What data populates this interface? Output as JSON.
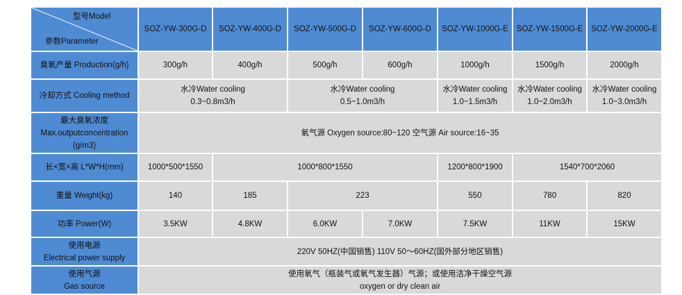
{
  "header": {
    "model_label": "型号Model",
    "param_label": "参数Parameter",
    "models": [
      "SOZ-YW-300G-D",
      "SOZ-YW-400G-D",
      "SOZ-YW-500G-D",
      "SOZ-YW-600G-D",
      "SOZ-YW-1000G-E",
      "SOZ-YW-1500G-E",
      "SOZ-YW-2000G-E"
    ]
  },
  "rows": {
    "production": {
      "label": "臭氧产量 Production(g/h)",
      "values": [
        "300g/h",
        "400g/h",
        "500g/h",
        "600g/h",
        "1000g/h",
        "1500g/h",
        "2000g/h"
      ]
    },
    "cooling": {
      "label": "冷却方式 Cooling method",
      "values": [
        {
          "type": "水冷Water cooling",
          "flow": "0.3~0.8m3/h"
        },
        {
          "type": "水冷Water cooling",
          "flow": "0.5~1.0m3/h"
        },
        {
          "type": "水冷Water cooling",
          "flow": "1.0~1.5m3/h"
        },
        {
          "type": "水冷Water cooling",
          "flow": "1.0~2.0m3/h"
        },
        {
          "type": "水冷Water cooling",
          "flow": "1.0~3.0m3/h"
        }
      ]
    },
    "concentration": {
      "label_cn": "最大臭氧浓度",
      "label_en": "Max.outputconcentration",
      "label_unit": "(g/m3)",
      "value": "氧气源 Oxygen source:80~120   空气源 Air source:16~35"
    },
    "dimensions": {
      "label": "长×宽×高 L*W*H(mm)",
      "values": [
        "1000*500*1550",
        "1000*800*1550",
        "1200*800*1900",
        "1540*700*2060"
      ]
    },
    "weight": {
      "label": "重量 Weight(kg)",
      "values": [
        "140",
        "185",
        "223",
        "550",
        "780",
        "820"
      ]
    },
    "power": {
      "label": "功率 Power(W)",
      "values": [
        "3.5KW",
        "4.8KW",
        "6.0KW",
        "7.0KW",
        "7.5KW",
        "11KW",
        "15KW"
      ]
    },
    "electric": {
      "label_cn": "使用电源",
      "label_en": "Electrical power supply",
      "value": "220V 50HZ(中国销售)  110V 50～60HZ(国外部分地区销售)"
    },
    "gas": {
      "label_cn": "使用气源",
      "label_en": "Gas source",
      "value_cn": "使用氧气（瓶装气或氧气发生器）气源；或使用洁净干燥空气源",
      "value_en": "oxygen or dry clean air"
    }
  },
  "colors": {
    "header": "#4f8bd3",
    "cell": "#d9d9d9"
  }
}
